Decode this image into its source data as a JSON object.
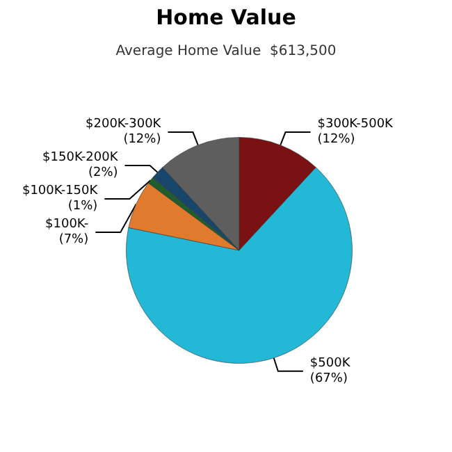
{
  "chart_data": {
    "type": "pie",
    "title": "Home Value",
    "subtitle": "Average Home Value  $613,500",
    "categories": [
      "$300K-500K",
      "$500K",
      "$100K-",
      "$100K-150K",
      "$150K-200K",
      "$200K-300K"
    ],
    "values": [
      12,
      67,
      7,
      1,
      2,
      12
    ],
    "value_labels": [
      "(12%)",
      "(67%)",
      "(7%)",
      "(1%)",
      "(2%)",
      "(12%)"
    ],
    "colors": [
      "#7a1214",
      "#22b8d6",
      "#e07a2c",
      "#1f5e2c",
      "#18466a",
      "#5e5e5e"
    ],
    "legend": false
  }
}
